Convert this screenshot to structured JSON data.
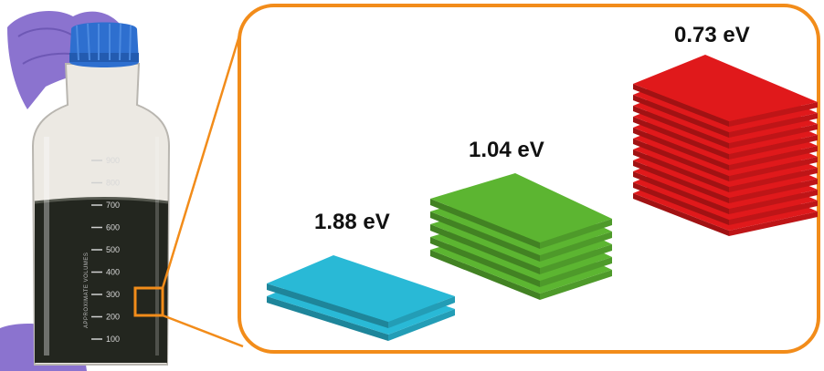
{
  "bottle": {
    "graduations": [
      "900",
      "800",
      "700",
      "600",
      "500",
      "400",
      "300",
      "200",
      "100"
    ],
    "vertical_text": "APPROXIMATE VOLUMES"
  },
  "stacks": [
    {
      "label": "1.88 eV",
      "layers": 2,
      "color": "#29b9d6"
    },
    {
      "label": "1.04 eV",
      "layers": 5,
      "color": "#5cb531"
    },
    {
      "label": "0.73 eV",
      "layers": 11,
      "color": "#e0191b"
    }
  ],
  "colors": {
    "callout_border": "#f28c1a",
    "liquid": "#23261f",
    "cap": "#2e6fcf",
    "glove": "#8b73cf"
  }
}
